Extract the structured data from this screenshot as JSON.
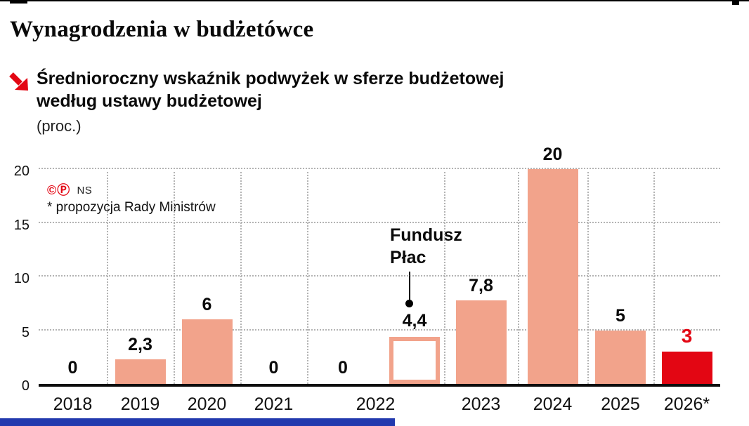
{
  "header": {
    "title": "Wynagrodzenia w budżetówce",
    "subtitle_line1": "Średnioroczny wskaźnik podwyżek w sferze budżetowej",
    "subtitle_line2": "według ustawy budżetowej",
    "unit_note": "(proc.)"
  },
  "chart_data": {
    "type": "bar",
    "title": "Średnioroczny wskaźnik podwyżek w sferze budżetowej według ustawy budżetowej",
    "unit": "proc.",
    "categories": [
      "2018",
      "2019",
      "2020",
      "2021",
      "2022",
      "2023",
      "2024",
      "2025",
      "2026*"
    ],
    "values": [
      0,
      2.3,
      6,
      0,
      0,
      7.8,
      20,
      5,
      3
    ],
    "value_labels": [
      "0",
      "2,3",
      "6",
      "0",
      "0",
      "7,8",
      "20",
      "5",
      "3"
    ],
    "extra_bar": {
      "category": "2022",
      "label": "Fundusz Płac",
      "value": 4.4,
      "value_label": "4,4",
      "style": "outlined"
    },
    "ylim": [
      0,
      20
    ],
    "yticks": [
      0,
      5,
      10,
      15,
      20
    ],
    "grid": true,
    "legend": false,
    "credit_marks": "©Ⓟ",
    "credit_text": "NS",
    "footnote": "* propozycja Rady Ministrów",
    "colors": {
      "bar": "#f2a38b",
      "highlight_bar": "#e30613",
      "highlight_value_color": "#e30613",
      "accent_red": "#e30613",
      "bottom_strip_blue": "#2239ae"
    }
  }
}
